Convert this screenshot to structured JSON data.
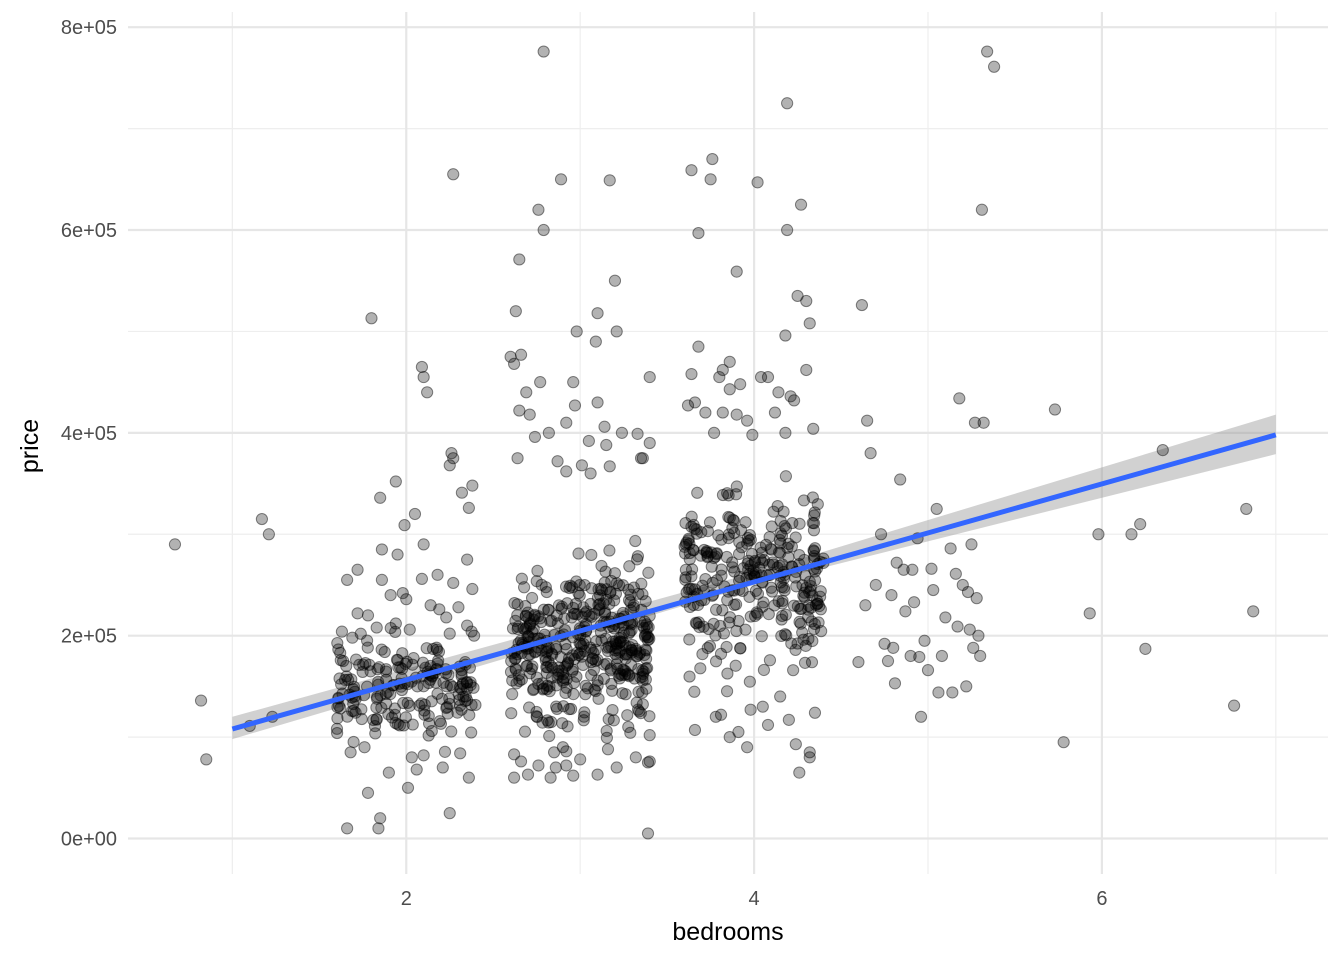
{
  "chart_data": {
    "type": "scatter",
    "xlabel": "bedrooms",
    "ylabel": "price",
    "x_ticks": [
      {
        "value": 2,
        "label": "2"
      },
      {
        "value": 4,
        "label": "4"
      },
      {
        "value": 6,
        "label": "6"
      }
    ],
    "y_ticks": [
      {
        "value": 0,
        "label": "0e+00"
      },
      {
        "value": 200000,
        "label": "2e+05"
      },
      {
        "value": 400000,
        "label": "4e+05"
      },
      {
        "value": 600000,
        "label": "6e+05"
      },
      {
        "value": 800000,
        "label": "8e+05"
      }
    ],
    "xlim": [
      0.4,
      7.3
    ],
    "ylim": [
      -35000,
      815000
    ],
    "grid": true,
    "jitter_width": 0.4,
    "point_color": "#000000",
    "point_alpha": 0.3,
    "fit_line": {
      "method": "linear",
      "x": [
        1,
        7
      ],
      "y": [
        108000,
        398000
      ],
      "color": "#3366FF"
    },
    "confidence_band": {
      "x": [
        1,
        4,
        7
      ],
      "lower": [
        98000,
        250000,
        379000
      ],
      "upper": [
        120000,
        262000,
        418000
      ],
      "color": "#999999",
      "alpha": 0.45
    },
    "points": [
      {
        "x": 0.67,
        "y": 290000
      },
      {
        "x": 0.82,
        "y": 136000
      },
      {
        "x": 0.85,
        "y": 78000
      },
      {
        "x": 1.1,
        "y": 111000
      },
      {
        "x": 1.17,
        "y": 315000
      },
      {
        "x": 1.21,
        "y": 300000
      },
      {
        "x": 1.23,
        "y": 120000
      },
      {
        "x": 5.73,
        "y": 423000
      },
      {
        "x": 5.78,
        "y": 95000
      },
      {
        "x": 5.93,
        "y": 222000
      },
      {
        "x": 5.98,
        "y": 300000
      },
      {
        "x": 6.17,
        "y": 300000
      },
      {
        "x": 6.22,
        "y": 310000
      },
      {
        "x": 6.25,
        "y": 187000
      },
      {
        "x": 6.35,
        "y": 383000
      },
      {
        "x": 6.76,
        "y": 131000
      },
      {
        "x": 6.83,
        "y": 325000
      },
      {
        "x": 6.87,
        "y": 224000
      },
      {
        "x": 4.6,
        "y": 174000
      },
      {
        "x": 4.62,
        "y": 526000
      },
      {
        "x": 4.64,
        "y": 230000
      },
      {
        "x": 4.65,
        "y": 412000
      },
      {
        "x": 4.67,
        "y": 380000
      },
      {
        "x": 4.7,
        "y": 250000
      },
      {
        "x": 4.73,
        "y": 300000
      },
      {
        "x": 4.75,
        "y": 192000
      },
      {
        "x": 4.77,
        "y": 175000
      },
      {
        "x": 4.79,
        "y": 240000
      },
      {
        "x": 4.8,
        "y": 188000
      },
      {
        "x": 4.81,
        "y": 153000
      },
      {
        "x": 4.82,
        "y": 272000
      },
      {
        "x": 4.84,
        "y": 354000
      },
      {
        "x": 4.86,
        "y": 265000
      },
      {
        "x": 4.87,
        "y": 224000
      },
      {
        "x": 4.9,
        "y": 180000
      },
      {
        "x": 4.91,
        "y": 265000
      },
      {
        "x": 4.92,
        "y": 233000
      },
      {
        "x": 4.94,
        "y": 296000
      },
      {
        "x": 4.95,
        "y": 179000
      },
      {
        "x": 4.96,
        "y": 120000
      },
      {
        "x": 4.98,
        "y": 195000
      },
      {
        "x": 5.0,
        "y": 166000
      },
      {
        "x": 5.02,
        "y": 266000
      },
      {
        "x": 5.03,
        "y": 245000
      },
      {
        "x": 5.05,
        "y": 325000
      },
      {
        "x": 5.06,
        "y": 144000
      },
      {
        "x": 5.08,
        "y": 180000
      },
      {
        "x": 5.1,
        "y": 218000
      },
      {
        "x": 5.13,
        "y": 286000
      },
      {
        "x": 5.14,
        "y": 144000
      },
      {
        "x": 5.16,
        "y": 261000
      },
      {
        "x": 5.17,
        "y": 209000
      },
      {
        "x": 5.18,
        "y": 434000
      },
      {
        "x": 5.2,
        "y": 250000
      },
      {
        "x": 5.22,
        "y": 150000
      },
      {
        "x": 5.23,
        "y": 243000
      },
      {
        "x": 5.24,
        "y": 206000
      },
      {
        "x": 5.25,
        "y": 290000
      },
      {
        "x": 5.26,
        "y": 188000
      },
      {
        "x": 5.27,
        "y": 410000
      },
      {
        "x": 5.28,
        "y": 237000
      },
      {
        "x": 5.29,
        "y": 200000
      },
      {
        "x": 5.3,
        "y": 180000
      },
      {
        "x": 5.31,
        "y": 620000
      },
      {
        "x": 5.32,
        "y": 410000
      },
      {
        "x": 5.34,
        "y": 776000
      },
      {
        "x": 5.38,
        "y": 761000
      },
      {
        "x": 1.8,
        "y": 513000
      },
      {
        "x": 2.09,
        "y": 465000
      },
      {
        "x": 2.1,
        "y": 455000
      },
      {
        "x": 2.12,
        "y": 440000
      },
      {
        "x": 2.27,
        "y": 655000
      },
      {
        "x": 2.26,
        "y": 380000
      },
      {
        "x": 2.27,
        "y": 375000
      },
      {
        "x": 2.25,
        "y": 368000
      },
      {
        "x": 1.94,
        "y": 352000
      },
      {
        "x": 2.38,
        "y": 348000
      },
      {
        "x": 2.32,
        "y": 341000
      },
      {
        "x": 1.85,
        "y": 336000
      },
      {
        "x": 2.36,
        "y": 326000
      },
      {
        "x": 2.05,
        "y": 320000
      },
      {
        "x": 1.99,
        "y": 309000
      },
      {
        "x": 2.1,
        "y": 290000
      },
      {
        "x": 1.86,
        "y": 285000
      },
      {
        "x": 1.95,
        "y": 280000
      },
      {
        "x": 2.35,
        "y": 275000
      },
      {
        "x": 1.72,
        "y": 265000
      },
      {
        "x": 2.18,
        "y": 260000
      },
      {
        "x": 1.66,
        "y": 255000
      },
      {
        "x": 1.86,
        "y": 255000
      },
      {
        "x": 2.09,
        "y": 256000
      },
      {
        "x": 2.27,
        "y": 252000
      },
      {
        "x": 2.38,
        "y": 246000
      },
      {
        "x": 1.98,
        "y": 242000
      },
      {
        "x": 1.91,
        "y": 240000
      },
      {
        "x": 2.0,
        "y": 236000
      },
      {
        "x": 2.14,
        "y": 230000
      },
      {
        "x": 2.3,
        "y": 228000
      },
      {
        "x": 2.19,
        "y": 226000
      },
      {
        "x": 1.72,
        "y": 222000
      },
      {
        "x": 1.78,
        "y": 220000
      },
      {
        "x": 2.23,
        "y": 218000
      },
      {
        "x": 1.94,
        "y": 212000
      },
      {
        "x": 2.35,
        "y": 210000
      },
      {
        "x": 1.63,
        "y": 204000
      },
      {
        "x": 1.83,
        "y": 208000
      },
      {
        "x": 2.02,
        "y": 206000
      },
      {
        "x": 2.25,
        "y": 202000
      },
      {
        "x": 2.39,
        "y": 200000
      },
      {
        "x": 1.69,
        "y": 198000
      },
      {
        "x": 1.66,
        "y": 10000
      },
      {
        "x": 1.84,
        "y": 10000
      },
      {
        "x": 1.85,
        "y": 20000
      },
      {
        "x": 2.25,
        "y": 25000
      },
      {
        "x": 1.78,
        "y": 45000
      },
      {
        "x": 2.01,
        "y": 50000
      },
      {
        "x": 2.36,
        "y": 60000
      },
      {
        "x": 1.9,
        "y": 65000
      },
      {
        "x": 2.06,
        "y": 68000
      },
      {
        "x": 2.21,
        "y": 70000
      },
      {
        "x": 1.68,
        "y": 85000
      },
      {
        "x": 2.1,
        "y": 82000
      },
      {
        "x": 2.31,
        "y": 84000
      },
      {
        "x": 1.76,
        "y": 90000
      },
      {
        "x": 2.65,
        "y": 571000
      },
      {
        "x": 2.79,
        "y": 776000
      },
      {
        "x": 2.76,
        "y": 620000
      },
      {
        "x": 2.79,
        "y": 600000
      },
      {
        "x": 2.89,
        "y": 650000
      },
      {
        "x": 3.17,
        "y": 649000
      },
      {
        "x": 3.2,
        "y": 550000
      },
      {
        "x": 3.1,
        "y": 518000
      },
      {
        "x": 2.63,
        "y": 520000
      },
      {
        "x": 2.98,
        "y": 500000
      },
      {
        "x": 3.21,
        "y": 500000
      },
      {
        "x": 3.09,
        "y": 490000
      },
      {
        "x": 2.6,
        "y": 475000
      },
      {
        "x": 2.66,
        "y": 477000
      },
      {
        "x": 2.62,
        "y": 468000
      },
      {
        "x": 2.96,
        "y": 450000
      },
      {
        "x": 2.77,
        "y": 450000
      },
      {
        "x": 3.4,
        "y": 455000
      },
      {
        "x": 2.69,
        "y": 440000
      },
      {
        "x": 3.1,
        "y": 430000
      },
      {
        "x": 2.97,
        "y": 427000
      },
      {
        "x": 2.65,
        "y": 422000
      },
      {
        "x": 2.71,
        "y": 418000
      },
      {
        "x": 2.92,
        "y": 410000
      },
      {
        "x": 3.14,
        "y": 406000
      },
      {
        "x": 2.82,
        "y": 400000
      },
      {
        "x": 3.33,
        "y": 399000
      },
      {
        "x": 3.24,
        "y": 400000
      },
      {
        "x": 2.74,
        "y": 396000
      },
      {
        "x": 3.05,
        "y": 392000
      },
      {
        "x": 3.4,
        "y": 390000
      },
      {
        "x": 3.15,
        "y": 388000
      },
      {
        "x": 2.64,
        "y": 375000
      },
      {
        "x": 2.87,
        "y": 372000
      },
      {
        "x": 3.35,
        "y": 375000
      },
      {
        "x": 3.36,
        "y": 375000
      },
      {
        "x": 3.01,
        "y": 368000
      },
      {
        "x": 3.17,
        "y": 367000
      },
      {
        "x": 2.92,
        "y": 362000
      },
      {
        "x": 3.06,
        "y": 360000
      },
      {
        "x": 2.83,
        "y": 60000
      },
      {
        "x": 2.62,
        "y": 60000
      },
      {
        "x": 2.7,
        "y": 63000
      },
      {
        "x": 2.96,
        "y": 62000
      },
      {
        "x": 3.1,
        "y": 63000
      },
      {
        "x": 3.39,
        "y": 5000
      },
      {
        "x": 3.39,
        "y": 75000
      },
      {
        "x": 3.4,
        "y": 76000
      },
      {
        "x": 2.76,
        "y": 72000
      },
      {
        "x": 2.86,
        "y": 70000
      },
      {
        "x": 2.92,
        "y": 72000
      },
      {
        "x": 3.21,
        "y": 70000
      },
      {
        "x": 2.66,
        "y": 76000
      },
      {
        "x": 3.0,
        "y": 78000
      },
      {
        "x": 3.32,
        "y": 80000
      },
      {
        "x": 2.62,
        "y": 83000
      },
      {
        "x": 2.85,
        "y": 85000
      },
      {
        "x": 2.92,
        "y": 86000
      },
      {
        "x": 3.16,
        "y": 88000
      },
      {
        "x": 3.64,
        "y": 659000
      },
      {
        "x": 3.76,
        "y": 670000
      },
      {
        "x": 3.75,
        "y": 650000
      },
      {
        "x": 3.68,
        "y": 597000
      },
      {
        "x": 4.02,
        "y": 647000
      },
      {
        "x": 4.19,
        "y": 725000
      },
      {
        "x": 4.19,
        "y": 600000
      },
      {
        "x": 4.27,
        "y": 625000
      },
      {
        "x": 3.9,
        "y": 559000
      },
      {
        "x": 4.25,
        "y": 535000
      },
      {
        "x": 4.3,
        "y": 530000
      },
      {
        "x": 4.32,
        "y": 508000
      },
      {
        "x": 4.18,
        "y": 496000
      },
      {
        "x": 3.68,
        "y": 485000
      },
      {
        "x": 3.86,
        "y": 470000
      },
      {
        "x": 4.3,
        "y": 462000
      },
      {
        "x": 3.82,
        "y": 462000
      },
      {
        "x": 3.64,
        "y": 458000
      },
      {
        "x": 3.8,
        "y": 455000
      },
      {
        "x": 4.04,
        "y": 455000
      },
      {
        "x": 4.08,
        "y": 455000
      },
      {
        "x": 3.92,
        "y": 448000
      },
      {
        "x": 3.86,
        "y": 443000
      },
      {
        "x": 4.14,
        "y": 440000
      },
      {
        "x": 4.21,
        "y": 436000
      },
      {
        "x": 4.23,
        "y": 432000
      },
      {
        "x": 3.62,
        "y": 427000
      },
      {
        "x": 3.66,
        "y": 430000
      },
      {
        "x": 3.72,
        "y": 420000
      },
      {
        "x": 4.12,
        "y": 420000
      },
      {
        "x": 3.82,
        "y": 420000
      },
      {
        "x": 3.9,
        "y": 418000
      },
      {
        "x": 3.96,
        "y": 412000
      },
      {
        "x": 4.34,
        "y": 404000
      },
      {
        "x": 4.18,
        "y": 400000
      },
      {
        "x": 3.77,
        "y": 400000
      },
      {
        "x": 3.99,
        "y": 398000
      },
      {
        "x": 3.66,
        "y": 107000
      },
      {
        "x": 3.78,
        "y": 120000
      },
      {
        "x": 3.81,
        "y": 122000
      },
      {
        "x": 3.86,
        "y": 100000
      },
      {
        "x": 3.96,
        "y": 90000
      },
      {
        "x": 4.24,
        "y": 93000
      },
      {
        "x": 4.32,
        "y": 85000
      },
      {
        "x": 4.32,
        "y": 80000
      },
      {
        "x": 4.26,
        "y": 65000
      },
      {
        "x": 3.91,
        "y": 105000
      },
      {
        "x": 4.08,
        "y": 112000
      },
      {
        "x": 4.2,
        "y": 117000
      },
      {
        "x": 4.35,
        "y": 124000
      },
      {
        "x": 4.05,
        "y": 130000
      },
      {
        "x": 3.98,
        "y": 127000
      },
      {
        "x": 4.15,
        "y": 140000
      }
    ]
  }
}
